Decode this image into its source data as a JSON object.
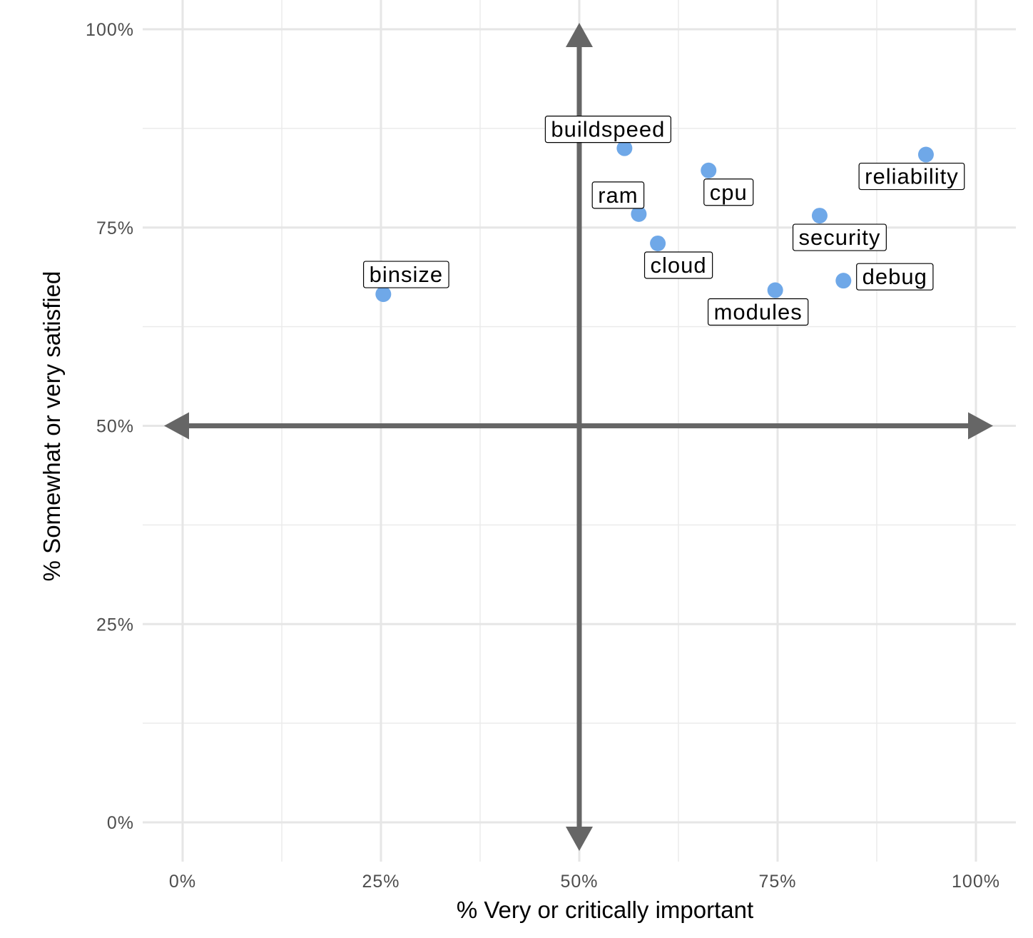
{
  "chart_data": {
    "type": "scatter",
    "title": "",
    "xlabel": "%   Very   or   critically   important",
    "ylabel": "% Somewhat or very satisfied",
    "xlim": [
      0,
      1
    ],
    "ylim": [
      0,
      1
    ],
    "x_ticks": [
      "0%",
      "25%",
      "50%",
      "75%",
      "100%"
    ],
    "y_ticks": [
      "0%",
      "25%",
      "50%",
      "75%",
      "100%"
    ],
    "grid": true,
    "point_color": "#6fa8e8",
    "quadrant_lines": {
      "x": 0.5,
      "y": 0.5,
      "color": "#666666"
    },
    "points": [
      {
        "label": "binsize",
        "x": 0.253,
        "y": 0.666
      },
      {
        "label": "buildspeed",
        "x": 0.557,
        "y": 0.85
      },
      {
        "label": "ram",
        "x": 0.575,
        "y": 0.767
      },
      {
        "label": "cloud",
        "x": 0.599,
        "y": 0.73
      },
      {
        "label": "cpu",
        "x": 0.663,
        "y": 0.822
      },
      {
        "label": "modules",
        "x": 0.747,
        "y": 0.671
      },
      {
        "label": "security",
        "x": 0.803,
        "y": 0.765
      },
      {
        "label": "debug",
        "x": 0.833,
        "y": 0.683
      },
      {
        "label": "reliability",
        "x": 0.937,
        "y": 0.842
      }
    ]
  }
}
